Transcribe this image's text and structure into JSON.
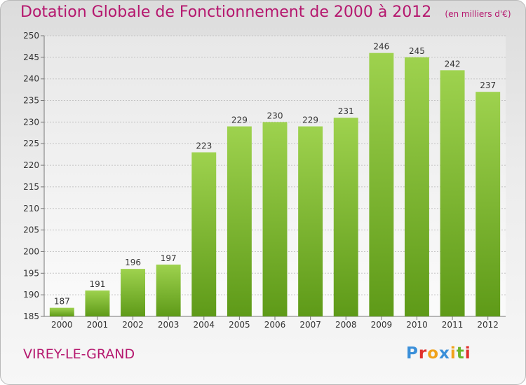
{
  "header": {
    "title": "Dotation Globale de Fonctionnement de 2000 à 2012",
    "unit": "(en milliers d'€)"
  },
  "footer": {
    "commune": "VIREY-LE-GRAND",
    "logo_letters": [
      "P",
      "r",
      "o",
      "x",
      "i",
      "t",
      "i"
    ],
    "logo_colors": [
      "#3a8fd9",
      "#e0302c",
      "#f0a21a",
      "#3a8fd9",
      "#f0a21a",
      "#6bb52a",
      "#e0302c"
    ]
  },
  "colors": {
    "accent": "#b5176e",
    "bar_top": "#9ed24e",
    "bar_bottom": "#5e9a18"
  },
  "chart_data": {
    "type": "bar",
    "categories": [
      "2000",
      "2001",
      "2002",
      "2003",
      "2004",
      "2005",
      "2006",
      "2007",
      "2008",
      "2009",
      "2010",
      "2011",
      "2012"
    ],
    "values": [
      187,
      191,
      196,
      197,
      223,
      229,
      230,
      229,
      231,
      246,
      245,
      242,
      237
    ],
    "ylim": [
      185,
      250
    ],
    "yticks": [
      185,
      190,
      195,
      200,
      205,
      210,
      215,
      220,
      225,
      230,
      235,
      240,
      245,
      250
    ],
    "grid": true
  }
}
